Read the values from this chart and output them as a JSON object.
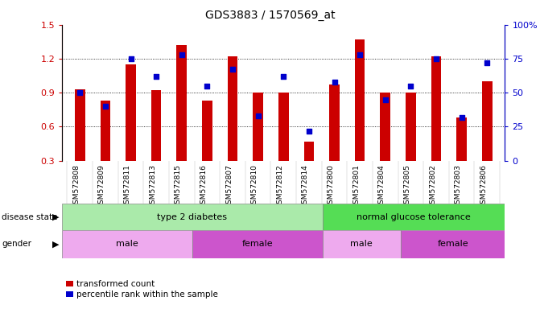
{
  "title": "GDS3883 / 1570569_at",
  "samples": [
    "GSM572808",
    "GSM572809",
    "GSM572811",
    "GSM572813",
    "GSM572815",
    "GSM572816",
    "GSM572807",
    "GSM572810",
    "GSM572812",
    "GSM572814",
    "GSM572800",
    "GSM572801",
    "GSM572804",
    "GSM572805",
    "GSM572802",
    "GSM572803",
    "GSM572806"
  ],
  "bar_values": [
    0.93,
    0.83,
    1.15,
    0.92,
    1.32,
    0.83,
    1.22,
    0.9,
    0.9,
    0.47,
    0.97,
    1.37,
    0.9,
    0.9,
    1.22,
    0.68,
    1.0
  ],
  "percentile_values": [
    50,
    40,
    75,
    62,
    78,
    55,
    67,
    33,
    62,
    22,
    58,
    78,
    45,
    55,
    75,
    32,
    72
  ],
  "ymin": 0.3,
  "ymax": 1.5,
  "yticks": [
    0.3,
    0.6,
    0.9,
    1.2,
    1.5
  ],
  "right_yticks": [
    0,
    25,
    50,
    75,
    100
  ],
  "bar_color": "#cc0000",
  "dot_color": "#0000cc",
  "disease_state_groups": [
    {
      "label": "type 2 diabetes",
      "start": 0,
      "end": 10,
      "color": "#aaeaaa"
    },
    {
      "label": "normal glucose tolerance",
      "start": 10,
      "end": 17,
      "color": "#55dd55"
    }
  ],
  "gender_groups": [
    {
      "label": "male",
      "start": 0,
      "end": 5,
      "color": "#eeaaee"
    },
    {
      "label": "female",
      "start": 5,
      "end": 10,
      "color": "#cc55cc"
    },
    {
      "label": "male",
      "start": 10,
      "end": 13,
      "color": "#eeaaee"
    },
    {
      "label": "female",
      "start": 13,
      "end": 17,
      "color": "#cc55cc"
    }
  ],
  "legend_items": [
    {
      "label": "transformed count",
      "color": "#cc0000"
    },
    {
      "label": "percentile rank within the sample",
      "color": "#0000cc"
    }
  ],
  "disease_label": "disease state",
  "gender_label": "gender",
  "tick_bg_color": "#d8d8d8",
  "bar_width": 0.4
}
